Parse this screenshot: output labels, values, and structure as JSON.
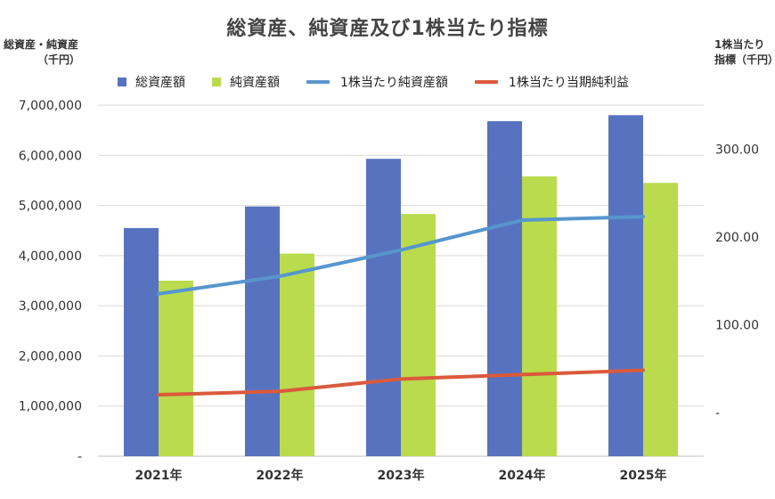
{
  "chart_data": {
    "type": "bar",
    "title": "総資産、純資産及び1株当たり指標",
    "categories": [
      "2021年",
      "2022年",
      "2023年",
      "2024年",
      "2025年"
    ],
    "ylabel_left": [
      "総資産・純資産",
      "（千円）"
    ],
    "ylabel_right": [
      "1株当たり",
      "指標（千円）"
    ],
    "ylim_left": [
      0,
      7000000
    ],
    "ylim_right": [
      -50,
      350
    ],
    "left_ticks": [
      "-",
      "1,000,000",
      "2,000,000",
      "3,000,000",
      "4,000,000",
      "5,000,000",
      "6,000,000",
      "7,000,000"
    ],
    "right_ticks": [
      "-",
      "100.00",
      "200.00",
      "300.00"
    ],
    "bar_series": [
      {
        "name": "総資産額",
        "color": "#5773C0",
        "values": [
          4550000,
          4980000,
          5930000,
          6680000,
          6800000
        ]
      },
      {
        "name": "純資産額",
        "color": "#B9DB4D",
        "values": [
          3500000,
          4040000,
          4830000,
          5580000,
          5450000
        ]
      }
    ],
    "line_series": [
      {
        "name": "1株当たり純資産額",
        "color": "#5796CD",
        "values": [
          135,
          155,
          185,
          219,
          223
        ]
      },
      {
        "name": "1株当たり当期純利益",
        "color": "#DA5A3C",
        "values": [
          20,
          24,
          38,
          43,
          48
        ]
      }
    ],
    "grid": true,
    "legend_position": "top"
  }
}
